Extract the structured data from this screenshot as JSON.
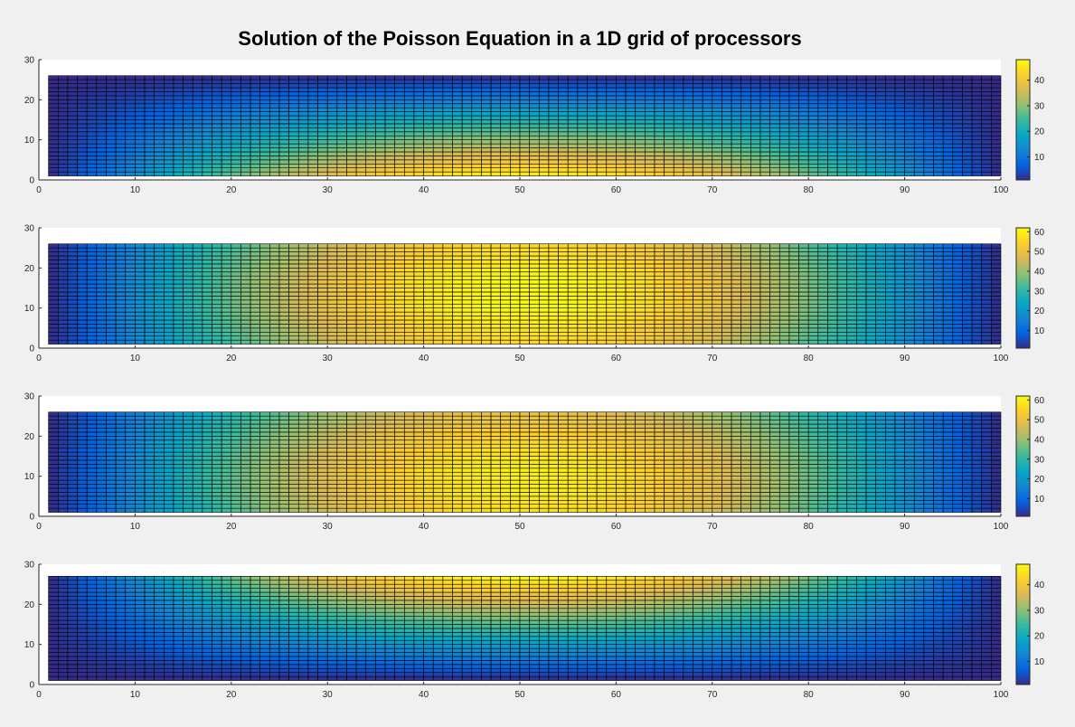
{
  "figure": {
    "title": "Solution of the Poisson Equation in a 1D grid of processors"
  },
  "chart_data": [
    {
      "type": "heatmap",
      "profile": "bottom-peak",
      "nx": 99,
      "ny": 25,
      "x_range": [
        1,
        100
      ],
      "y_range": [
        1,
        26
      ],
      "xlim": [
        0,
        100
      ],
      "ylim": [
        0,
        30
      ],
      "xticks": [
        0,
        10,
        20,
        30,
        40,
        50,
        60,
        70,
        80,
        90,
        100
      ],
      "yticks": [
        0,
        10,
        20,
        30
      ],
      "value_range": [
        1,
        47
      ],
      "colorbar_ticks": [
        10,
        20,
        30,
        40
      ],
      "colorbar_limits": [
        1,
        48
      ]
    },
    {
      "type": "heatmap",
      "profile": "center-peak",
      "nx": 99,
      "ny": 25,
      "x_range": [
        1,
        100
      ],
      "y_range": [
        1,
        26
      ],
      "xlim": [
        0,
        100
      ],
      "ylim": [
        0,
        30
      ],
      "xticks": [
        0,
        10,
        20,
        30,
        40,
        50,
        60,
        70,
        80,
        90,
        100
      ],
      "yticks": [
        0,
        10,
        20,
        30
      ],
      "value_range": [
        1,
        62
      ],
      "colorbar_ticks": [
        10,
        20,
        30,
        40,
        50,
        60
      ],
      "colorbar_limits": [
        1,
        62
      ]
    },
    {
      "type": "heatmap",
      "profile": "upper-peak",
      "nx": 99,
      "ny": 25,
      "x_range": [
        1,
        100
      ],
      "y_range": [
        1,
        26
      ],
      "xlim": [
        0,
        100
      ],
      "ylim": [
        0,
        30
      ],
      "xticks": [
        0,
        10,
        20,
        30,
        40,
        50,
        60,
        70,
        80,
        90,
        100
      ],
      "yticks": [
        0,
        10,
        20,
        30
      ],
      "value_range": [
        1,
        60
      ],
      "colorbar_ticks": [
        10,
        20,
        30,
        40,
        50,
        60
      ],
      "colorbar_limits": [
        1,
        62
      ]
    },
    {
      "type": "heatmap",
      "profile": "top-peak",
      "nx": 99,
      "ny": 26,
      "x_range": [
        1,
        100
      ],
      "y_range": [
        1,
        27
      ],
      "xlim": [
        0,
        100
      ],
      "ylim": [
        0,
        30
      ],
      "xticks": [
        0,
        10,
        20,
        30,
        40,
        50,
        60,
        70,
        80,
        90,
        100
      ],
      "yticks": [
        0,
        10,
        20,
        30
      ],
      "value_range": [
        1,
        48
      ],
      "colorbar_ticks": [
        10,
        20,
        30,
        40
      ],
      "colorbar_limits": [
        1,
        48
      ]
    }
  ],
  "colors": {
    "parula": [
      "#352a87",
      "#0363e1",
      "#1485d4",
      "#06a7c6",
      "#38b99e",
      "#92bf73",
      "#d9ba56",
      "#fcce2e",
      "#f9fb0e"
    ],
    "gridline": "#000000",
    "axes_bg": "#ffffff",
    "figure_bg": "#f0f0f0"
  }
}
